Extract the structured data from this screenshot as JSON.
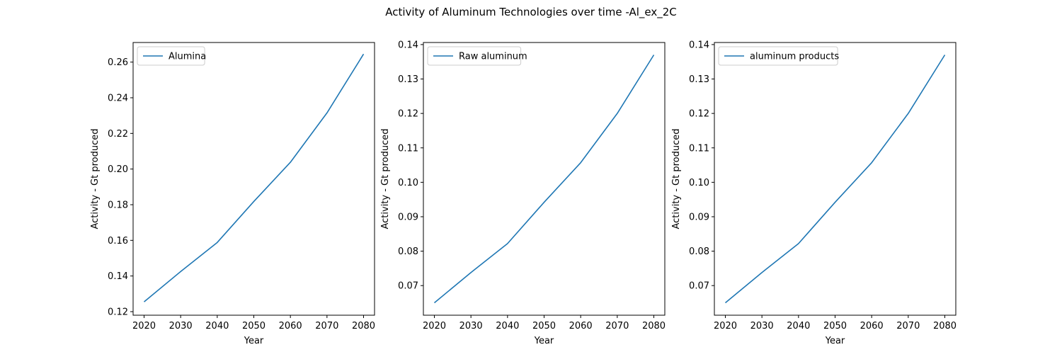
{
  "figure": {
    "title": "Activity of Aluminum Technologies over time -Al_ex_2C"
  },
  "chart_data": [
    {
      "type": "line",
      "xlabel": "Year",
      "ylabel": "Activity - Gt produced",
      "x": [
        2020,
        2030,
        2040,
        2050,
        2060,
        2070,
        2080
      ],
      "xticks": [
        "2020",
        "2030",
        "2040",
        "2050",
        "2060",
        "2070",
        "2080"
      ],
      "xlim": [
        2017,
        2083
      ],
      "ylim": [
        0.118,
        0.271
      ],
      "yticks": [
        "0.12",
        "0.14",
        "0.16",
        "0.18",
        "0.20",
        "0.22",
        "0.24",
        "0.26"
      ],
      "legend_position": "upper-left",
      "series": [
        {
          "name": "Alumina",
          "color": "#1f77b4",
          "values": [
            0.1255,
            0.1425,
            0.1588,
            0.1818,
            0.2038,
            0.2315,
            0.2645
          ]
        }
      ]
    },
    {
      "type": "line",
      "xlabel": "Year",
      "ylabel": "Activity - Gt produced",
      "x": [
        2020,
        2030,
        2040,
        2050,
        2060,
        2070,
        2080
      ],
      "xticks": [
        "2020",
        "2030",
        "2040",
        "2050",
        "2060",
        "2070",
        "2080"
      ],
      "xlim": [
        2017,
        2083
      ],
      "ylim": [
        0.0614,
        0.1406
      ],
      "yticks": [
        "0.07",
        "0.08",
        "0.09",
        "0.10",
        "0.11",
        "0.12",
        "0.13",
        "0.14"
      ],
      "legend_position": "upper-left",
      "series": [
        {
          "name": "Raw aluminum",
          "color": "#1f77b4",
          "values": [
            0.065,
            0.0738,
            0.0822,
            0.0942,
            0.1057,
            0.12,
            0.137
          ]
        }
      ]
    },
    {
      "type": "line",
      "xlabel": "Year",
      "ylabel": "Activity - Gt produced",
      "x": [
        2020,
        2030,
        2040,
        2050,
        2060,
        2070,
        2080
      ],
      "xticks": [
        "2020",
        "2030",
        "2040",
        "2050",
        "2060",
        "2070",
        "2080"
      ],
      "xlim": [
        2017,
        2083
      ],
      "ylim": [
        0.0614,
        0.1406
      ],
      "yticks": [
        "0.07",
        "0.08",
        "0.09",
        "0.10",
        "0.11",
        "0.12",
        "0.13",
        "0.14"
      ],
      "legend_position": "upper-left",
      "series": [
        {
          "name": "aluminum products",
          "color": "#1f77b4",
          "values": [
            0.065,
            0.0738,
            0.0822,
            0.0942,
            0.1057,
            0.12,
            0.137
          ]
        }
      ]
    }
  ]
}
